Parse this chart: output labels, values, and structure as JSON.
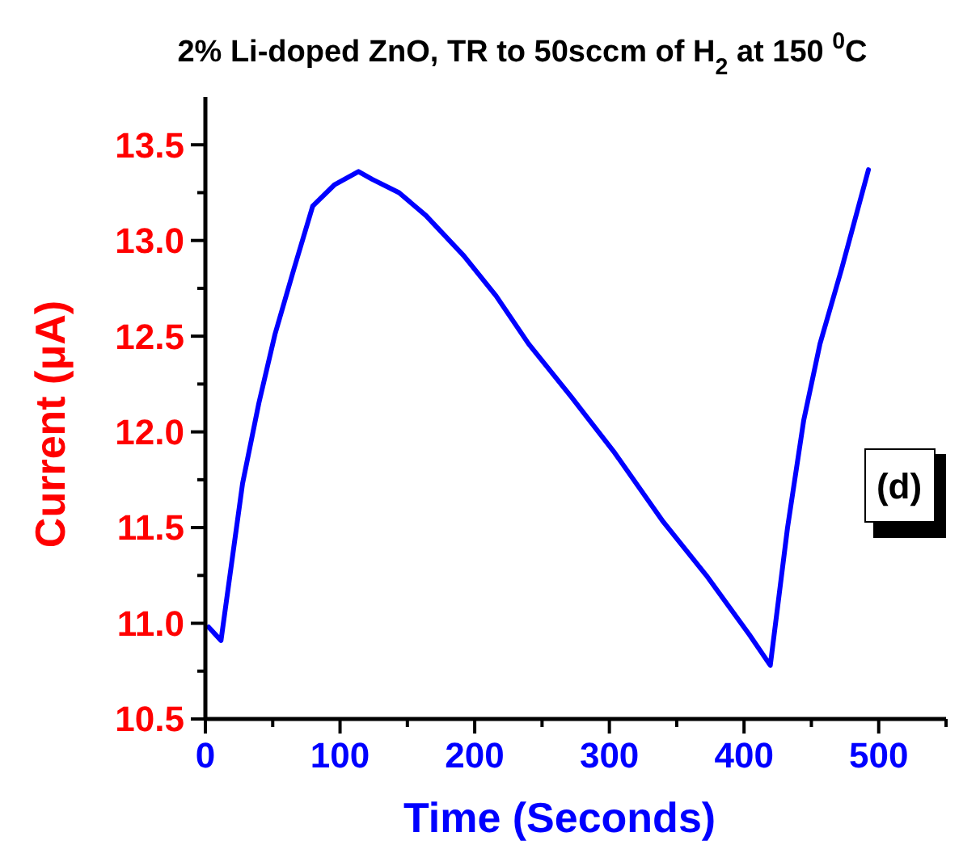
{
  "chart_data": {
    "type": "line",
    "title": "2% Li-doped ZnO, TR to 50sccm of H$_{2}$ at 150 $^{0}$C",
    "xlabel": "Time (Seconds)",
    "ylabel": "Current (μA)",
    "annotations": [
      "(d)"
    ],
    "x": [
      2.4,
      11.6,
      27.6,
      39.7,
      51.7,
      65.7,
      79.7,
      95.7,
      113.7,
      123.8,
      143.8,
      163.8,
      191.9,
      215.9,
      240,
      272,
      304,
      340,
      372,
      404,
      419.5,
      432.3,
      444.3,
      456.4,
      472.4,
      492.4
    ],
    "series": [
      {
        "color": "#0000ff",
        "values": [
          10.98,
          10.91,
          11.73,
          12.15,
          12.51,
          12.85,
          13.18,
          13.29,
          13.36,
          13.32,
          13.25,
          13.13,
          12.92,
          12.71,
          12.46,
          12.18,
          11.89,
          11.53,
          11.25,
          10.94,
          10.78,
          11.5,
          12.06,
          12.46,
          12.85,
          13.37
        ]
      }
    ],
    "xlim": [
      0,
      550
    ],
    "ylim": [
      10.5,
      13.75
    ],
    "xticks": [
      0,
      {
        "value": 50,
        "label": null
      },
      100,
      {
        "value": 150,
        "label": null
      },
      200,
      {
        "value": 250,
        "label": null
      },
      300,
      {
        "value": 350,
        "label": null
      },
      400,
      {
        "value": 450,
        "label": null
      },
      500,
      {
        "value": 550,
        "label": null
      }
    ],
    "yticks": [
      10.5,
      {
        "value": 10.75,
        "label": null
      },
      {
        "value": 11,
        "label": "11.0"
      },
      {
        "value": 11.25,
        "label": null
      },
      11.5,
      {
        "value": 11.75,
        "label": null
      },
      {
        "value": 12,
        "label": "12.0"
      },
      {
        "value": 12.25,
        "label": null
      },
      12.5,
      {
        "value": 12.75,
        "label": null
      },
      {
        "value": 13,
        "label": "13.0"
      },
      {
        "value": 13.25,
        "label": null
      },
      13.5
    ],
    "grid": false,
    "marker": "none",
    "line_style": "solid"
  }
}
